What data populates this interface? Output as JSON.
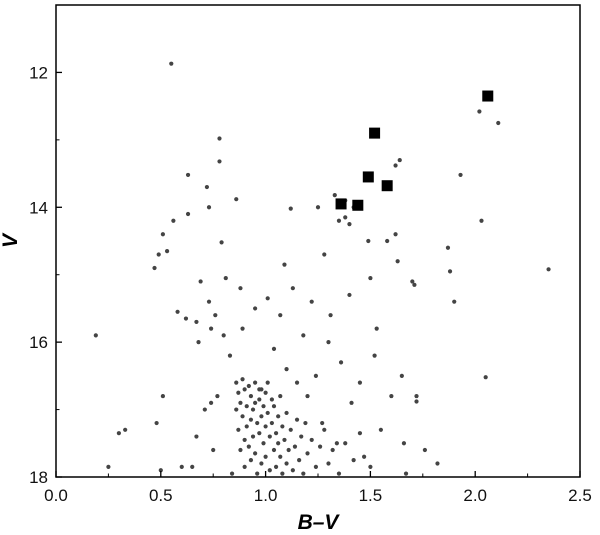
{
  "chart_data": {
    "type": "scatter",
    "title": "",
    "xlabel": "B–V",
    "ylabel": "V",
    "xlim": [
      0.0,
      2.5
    ],
    "ylim": [
      18,
      11
    ],
    "y_inverted": true,
    "x_ticks": [
      "0.0",
      "0.5",
      "1.0",
      "1.5",
      "2.0",
      "2.5"
    ],
    "y_ticks": [
      "12",
      "14",
      "16",
      "18"
    ],
    "grid": false,
    "legend": "none",
    "series": [
      {
        "marker": "small-dot",
        "color": "#444444",
        "points": [
          [
            0.55,
            11.87
          ],
          [
            0.19,
            15.9
          ],
          [
            0.25,
            17.85
          ],
          [
            0.3,
            17.35
          ],
          [
            0.33,
            17.3
          ],
          [
            0.47,
            14.9
          ],
          [
            0.48,
            17.2
          ],
          [
            0.49,
            14.7
          ],
          [
            0.51,
            14.4
          ],
          [
            0.51,
            16.8
          ],
          [
            0.53,
            14.65
          ],
          [
            0.5,
            17.9
          ],
          [
            0.56,
            14.2
          ],
          [
            0.58,
            15.55
          ],
          [
            0.6,
            17.85
          ],
          [
            0.62,
            15.65
          ],
          [
            0.63,
            13.52
          ],
          [
            0.63,
            14.1
          ],
          [
            0.65,
            17.85
          ],
          [
            0.67,
            15.7
          ],
          [
            0.67,
            17.4
          ],
          [
            0.68,
            16.0
          ],
          [
            0.69,
            15.1
          ],
          [
            0.71,
            17.0
          ],
          [
            0.72,
            13.7
          ],
          [
            0.73,
            14.0
          ],
          [
            0.73,
            15.4
          ],
          [
            0.74,
            15.8
          ],
          [
            0.74,
            16.9
          ],
          [
            0.75,
            17.6
          ],
          [
            0.76,
            15.6
          ],
          [
            0.77,
            16.8
          ],
          [
            0.78,
            13.32
          ],
          [
            0.78,
            12.98
          ],
          [
            0.79,
            14.52
          ],
          [
            0.8,
            15.9
          ],
          [
            0.81,
            15.05
          ],
          [
            0.83,
            16.2
          ],
          [
            0.84,
            17.95
          ],
          [
            0.86,
            13.88
          ],
          [
            0.88,
            15.2
          ],
          [
            0.89,
            15.8
          ],
          [
            0.95,
            15.5
          ],
          [
            0.97,
            16.7
          ],
          [
            1.01,
            15.35
          ],
          [
            1.04,
            16.1
          ],
          [
            1.07,
            15.6
          ],
          [
            1.09,
            14.85
          ],
          [
            1.1,
            16.4
          ],
          [
            1.12,
            14.02
          ],
          [
            1.13,
            15.2
          ],
          [
            1.15,
            16.6
          ],
          [
            1.18,
            15.9
          ],
          [
            1.2,
            16.8
          ],
          [
            1.22,
            15.4
          ],
          [
            1.24,
            16.5
          ],
          [
            1.25,
            14.0
          ],
          [
            1.27,
            17.2
          ],
          [
            1.28,
            14.7
          ],
          [
            1.3,
            16.0
          ],
          [
            1.31,
            15.6
          ],
          [
            1.33,
            13.82
          ],
          [
            1.34,
            17.5
          ],
          [
            1.35,
            14.2
          ],
          [
            1.36,
            16.3
          ],
          [
            1.38,
            13.9
          ],
          [
            1.38,
            14.15
          ],
          [
            1.4,
            15.3
          ],
          [
            1.4,
            14.25
          ],
          [
            1.41,
            16.9
          ],
          [
            1.42,
            14.0
          ],
          [
            1.44,
            13.98
          ],
          [
            1.45,
            16.6
          ],
          [
            1.47,
            17.7
          ],
          [
            1.49,
            14.5
          ],
          [
            1.5,
            15.05
          ],
          [
            1.52,
            16.2
          ],
          [
            1.53,
            15.8
          ],
          [
            1.55,
            17.3
          ],
          [
            1.58,
            14.5
          ],
          [
            1.6,
            16.8
          ],
          [
            1.62,
            13.38
          ],
          [
            1.62,
            14.4
          ],
          [
            1.63,
            14.8
          ],
          [
            1.64,
            13.3
          ],
          [
            1.65,
            16.5
          ],
          [
            1.66,
            17.5
          ],
          [
            1.67,
            17.95
          ],
          [
            1.7,
            15.1
          ],
          [
            1.71,
            15.15
          ],
          [
            1.72,
            16.8
          ],
          [
            1.72,
            16.88
          ],
          [
            1.76,
            17.6
          ],
          [
            1.82,
            17.8
          ],
          [
            1.87,
            14.6
          ],
          [
            1.88,
            14.95
          ],
          [
            1.9,
            15.4
          ],
          [
            1.93,
            13.52
          ],
          [
            2.02,
            12.58
          ],
          [
            2.03,
            14.2
          ],
          [
            2.05,
            16.52
          ],
          [
            2.11,
            12.75
          ],
          [
            2.35,
            14.92
          ],
          [
            0.86,
            16.6
          ],
          [
            0.86,
            17.0
          ],
          [
            0.87,
            16.75
          ],
          [
            0.87,
            17.3
          ],
          [
            0.88,
            16.9
          ],
          [
            0.88,
            17.6
          ],
          [
            0.89,
            16.55
          ],
          [
            0.89,
            17.1
          ],
          [
            0.9,
            16.7
          ],
          [
            0.9,
            17.45
          ],
          [
            0.9,
            17.85
          ],
          [
            0.91,
            16.95
          ],
          [
            0.91,
            17.25
          ],
          [
            0.92,
            16.65
          ],
          [
            0.92,
            17.55
          ],
          [
            0.93,
            16.8
          ],
          [
            0.93,
            17.15
          ],
          [
            0.93,
            17.75
          ],
          [
            0.94,
            17.0
          ],
          [
            0.94,
            17.4
          ],
          [
            0.95,
            16.6
          ],
          [
            0.95,
            16.9
          ],
          [
            0.95,
            17.65
          ],
          [
            0.96,
            17.2
          ],
          [
            0.96,
            17.95
          ],
          [
            0.97,
            16.85
          ],
          [
            0.97,
            17.35
          ],
          [
            0.98,
            16.7
          ],
          [
            0.98,
            17.1
          ],
          [
            0.98,
            17.8
          ],
          [
            0.99,
            16.95
          ],
          [
            0.99,
            17.5
          ],
          [
            1.0,
            16.75
          ],
          [
            1.0,
            17.25
          ],
          [
            1.0,
            17.7
          ],
          [
            1.01,
            16.6
          ],
          [
            1.01,
            17.05
          ],
          [
            1.02,
            17.4
          ],
          [
            1.02,
            17.9
          ],
          [
            1.03,
            16.85
          ],
          [
            1.03,
            17.2
          ],
          [
            1.04,
            17.6
          ],
          [
            1.04,
            16.95
          ],
          [
            1.05,
            17.35
          ],
          [
            1.05,
            17.85
          ],
          [
            1.06,
            17.1
          ],
          [
            1.06,
            17.5
          ],
          [
            1.07,
            16.8
          ],
          [
            1.07,
            17.7
          ],
          [
            1.08,
            17.25
          ],
          [
            1.08,
            17.95
          ],
          [
            1.09,
            17.45
          ],
          [
            1.1,
            17.05
          ],
          [
            1.1,
            17.8
          ],
          [
            1.11,
            17.6
          ],
          [
            1.12,
            17.3
          ],
          [
            1.13,
            17.9
          ],
          [
            1.14,
            17.55
          ],
          [
            1.15,
            17.15
          ],
          [
            1.16,
            17.75
          ],
          [
            1.17,
            17.4
          ],
          [
            1.18,
            17.95
          ],
          [
            1.19,
            17.2
          ],
          [
            1.2,
            17.65
          ],
          [
            1.22,
            17.45
          ],
          [
            1.24,
            17.85
          ],
          [
            1.26,
            17.55
          ],
          [
            1.28,
            17.3
          ],
          [
            1.3,
            17.8
          ],
          [
            1.32,
            17.6
          ],
          [
            1.35,
            17.95
          ],
          [
            1.38,
            17.5
          ],
          [
            1.42,
            17.75
          ],
          [
            1.45,
            17.35
          ],
          [
            1.5,
            17.85
          ]
        ]
      },
      {
        "marker": "filled-square",
        "color": "#000000",
        "points": [
          [
            2.06,
            12.35
          ],
          [
            1.52,
            12.9
          ],
          [
            1.49,
            13.55
          ],
          [
            1.58,
            13.68
          ],
          [
            1.36,
            13.95
          ],
          [
            1.44,
            13.97
          ]
        ]
      }
    ]
  }
}
